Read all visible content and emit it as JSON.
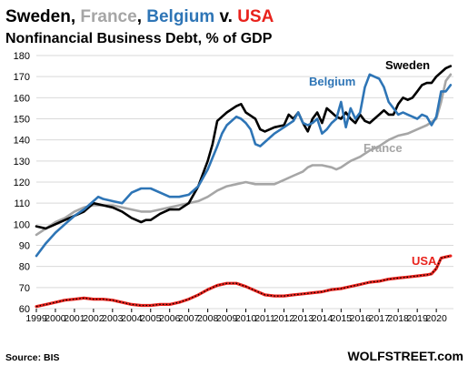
{
  "title": {
    "part1": "Sweden",
    "sep1": ", ",
    "part2": "France",
    "sep2": ", ",
    "part3": "Belgium",
    "sep3": " v. ",
    "part4": "USA"
  },
  "subtitle": "Nonfinancial Business Debt, % of GDP",
  "source": "Source: BIS",
  "brand": "WOLFSTREET.com",
  "colors": {
    "sweden": "#000000",
    "france": "#a6a6a6",
    "belgium": "#2e75b6",
    "usa": "#e8221c",
    "grid": "#d9d9d9"
  },
  "chart_data": {
    "type": "line",
    "title": "Sweden, France, Belgium v. USA",
    "subtitle": "Nonfinancial Business Debt, % of GDP",
    "xlabel": "",
    "ylabel": "",
    "xlim": [
      1999,
      2020.9
    ],
    "ylim": [
      60,
      180
    ],
    "yticks": [
      60,
      70,
      80,
      90,
      100,
      110,
      120,
      130,
      140,
      150,
      160,
      170,
      180
    ],
    "xticks": [
      "1999",
      "2000",
      "2001",
      "2002",
      "2003",
      "2004",
      "2005",
      "2006",
      "2007",
      "2008",
      "2009",
      "2010",
      "2011",
      "2012",
      "2013",
      "2014",
      "2015",
      "2016",
      "2017",
      "2018",
      "2019",
      "2020"
    ],
    "grid": true,
    "legend": "inline labels",
    "series": [
      {
        "name": "Sweden",
        "points": [
          [
            1999.0,
            99
          ],
          [
            1999.5,
            98
          ],
          [
            2000.0,
            100
          ],
          [
            2000.5,
            102
          ],
          [
            2001.0,
            104
          ],
          [
            2001.5,
            106
          ],
          [
            2002.0,
            110
          ],
          [
            2002.5,
            109
          ],
          [
            2003.0,
            108
          ],
          [
            2003.5,
            106
          ],
          [
            2004.0,
            103
          ],
          [
            2004.25,
            102
          ],
          [
            2004.5,
            101
          ],
          [
            2004.75,
            102
          ],
          [
            2005.0,
            102
          ],
          [
            2005.5,
            105
          ],
          [
            2006.0,
            107
          ],
          [
            2006.5,
            107
          ],
          [
            2007.0,
            110
          ],
          [
            2007.5,
            118
          ],
          [
            2008.0,
            130
          ],
          [
            2008.25,
            138
          ],
          [
            2008.5,
            149
          ],
          [
            2008.75,
            151
          ],
          [
            2009.0,
            153
          ],
          [
            2009.5,
            156
          ],
          [
            2009.75,
            157
          ],
          [
            2010.0,
            153
          ],
          [
            2010.5,
            150
          ],
          [
            2010.75,
            145
          ],
          [
            2011.0,
            144
          ],
          [
            2011.5,
            146
          ],
          [
            2012.0,
            147
          ],
          [
            2012.25,
            152
          ],
          [
            2012.5,
            150
          ],
          [
            2012.75,
            153
          ],
          [
            2013.0,
            148
          ],
          [
            2013.25,
            144
          ],
          [
            2013.5,
            150
          ],
          [
            2013.75,
            153
          ],
          [
            2014.0,
            148
          ],
          [
            2014.25,
            155
          ],
          [
            2014.5,
            153
          ],
          [
            2014.75,
            151
          ],
          [
            2015.0,
            150
          ],
          [
            2015.25,
            153
          ],
          [
            2015.5,
            150
          ],
          [
            2015.75,
            148
          ],
          [
            2016.0,
            152
          ],
          [
            2016.25,
            149
          ],
          [
            2016.5,
            148
          ],
          [
            2016.75,
            150
          ],
          [
            2017.0,
            152
          ],
          [
            2017.25,
            154
          ],
          [
            2017.5,
            152
          ],
          [
            2017.75,
            152
          ],
          [
            2018.0,
            157
          ],
          [
            2018.25,
            160
          ],
          [
            2018.5,
            159
          ],
          [
            2018.75,
            160
          ],
          [
            2019.0,
            163
          ],
          [
            2019.25,
            166
          ],
          [
            2019.5,
            167
          ],
          [
            2019.75,
            167
          ],
          [
            2020.0,
            170
          ],
          [
            2020.25,
            172
          ],
          [
            2020.5,
            174
          ],
          [
            2020.75,
            175
          ]
        ]
      },
      {
        "name": "France",
        "points": [
          [
            1999.0,
            95
          ],
          [
            1999.5,
            98
          ],
          [
            2000.0,
            101
          ],
          [
            2000.5,
            103
          ],
          [
            2001.0,
            106
          ],
          [
            2001.5,
            108
          ],
          [
            2002.0,
            109
          ],
          [
            2002.5,
            109
          ],
          [
            2003.0,
            109
          ],
          [
            2003.5,
            108
          ],
          [
            2004.0,
            107
          ],
          [
            2004.5,
            106
          ],
          [
            2005.0,
            106
          ],
          [
            2005.5,
            107
          ],
          [
            2006.0,
            108
          ],
          [
            2006.5,
            109
          ],
          [
            2007.0,
            110
          ],
          [
            2007.5,
            111
          ],
          [
            2008.0,
            113
          ],
          [
            2008.5,
            116
          ],
          [
            2009.0,
            118
          ],
          [
            2009.5,
            119
          ],
          [
            2010.0,
            120
          ],
          [
            2010.5,
            119
          ],
          [
            2011.0,
            119
          ],
          [
            2011.5,
            119
          ],
          [
            2012.0,
            121
          ],
          [
            2012.5,
            123
          ],
          [
            2013.0,
            125
          ],
          [
            2013.25,
            127
          ],
          [
            2013.5,
            128
          ],
          [
            2014.0,
            128
          ],
          [
            2014.5,
            127
          ],
          [
            2014.75,
            126
          ],
          [
            2015.0,
            127
          ],
          [
            2015.5,
            130
          ],
          [
            2016.0,
            132
          ],
          [
            2016.5,
            135
          ],
          [
            2017.0,
            137
          ],
          [
            2017.5,
            140
          ],
          [
            2018.0,
            142
          ],
          [
            2018.5,
            143
          ],
          [
            2019.0,
            145
          ],
          [
            2019.5,
            147
          ],
          [
            2020.0,
            150
          ],
          [
            2020.25,
            158
          ],
          [
            2020.5,
            168
          ],
          [
            2020.75,
            171
          ]
        ]
      },
      {
        "name": "Belgium",
        "points": [
          [
            1999.0,
            85
          ],
          [
            1999.5,
            91
          ],
          [
            2000.0,
            96
          ],
          [
            2000.5,
            100
          ],
          [
            2001.0,
            104
          ],
          [
            2001.5,
            107
          ],
          [
            2002.0,
            111
          ],
          [
            2002.25,
            113
          ],
          [
            2002.5,
            112
          ],
          [
            2003.0,
            111
          ],
          [
            2003.5,
            110
          ],
          [
            2004.0,
            115
          ],
          [
            2004.5,
            117
          ],
          [
            2005.0,
            117
          ],
          [
            2005.5,
            115
          ],
          [
            2006.0,
            113
          ],
          [
            2006.5,
            113
          ],
          [
            2007.0,
            114
          ],
          [
            2007.5,
            118
          ],
          [
            2008.0,
            126
          ],
          [
            2008.5,
            137
          ],
          [
            2008.75,
            143
          ],
          [
            2009.0,
            147
          ],
          [
            2009.5,
            151
          ],
          [
            2009.75,
            150
          ],
          [
            2010.0,
            148
          ],
          [
            2010.25,
            145
          ],
          [
            2010.5,
            138
          ],
          [
            2010.75,
            137
          ],
          [
            2011.0,
            139
          ],
          [
            2011.5,
            143
          ],
          [
            2012.0,
            146
          ],
          [
            2012.5,
            149
          ],
          [
            2012.75,
            153
          ],
          [
            2013.0,
            148
          ],
          [
            2013.25,
            147
          ],
          [
            2013.5,
            148
          ],
          [
            2013.75,
            150
          ],
          [
            2014.0,
            143
          ],
          [
            2014.25,
            145
          ],
          [
            2014.5,
            148
          ],
          [
            2014.75,
            150
          ],
          [
            2015.0,
            158
          ],
          [
            2015.25,
            146
          ],
          [
            2015.5,
            155
          ],
          [
            2015.75,
            150
          ],
          [
            2016.0,
            153
          ],
          [
            2016.25,
            165
          ],
          [
            2016.5,
            171
          ],
          [
            2016.75,
            170
          ],
          [
            2017.0,
            169
          ],
          [
            2017.25,
            165
          ],
          [
            2017.5,
            158
          ],
          [
            2017.75,
            155
          ],
          [
            2018.0,
            152
          ],
          [
            2018.25,
            153
          ],
          [
            2018.5,
            152
          ],
          [
            2018.75,
            151
          ],
          [
            2019.0,
            150
          ],
          [
            2019.25,
            152
          ],
          [
            2019.5,
            151
          ],
          [
            2019.75,
            147
          ],
          [
            2020.0,
            151
          ],
          [
            2020.25,
            163
          ],
          [
            2020.5,
            163
          ],
          [
            2020.75,
            166
          ]
        ]
      },
      {
        "name": "USA",
        "points": [
          [
            1999.0,
            61
          ],
          [
            1999.5,
            62
          ],
          [
            2000.0,
            63
          ],
          [
            2000.5,
            64
          ],
          [
            2001.0,
            64.5
          ],
          [
            2001.5,
            65
          ],
          [
            2002.0,
            64.5
          ],
          [
            2002.5,
            64.5
          ],
          [
            2003.0,
            64
          ],
          [
            2003.5,
            63
          ],
          [
            2004.0,
            62
          ],
          [
            2004.5,
            61.5
          ],
          [
            2005.0,
            61.5
          ],
          [
            2005.5,
            62
          ],
          [
            2006.0,
            62
          ],
          [
            2006.5,
            63
          ],
          [
            2007.0,
            64.5
          ],
          [
            2007.5,
            66.5
          ],
          [
            2008.0,
            69
          ],
          [
            2008.5,
            71
          ],
          [
            2009.0,
            72
          ],
          [
            2009.5,
            72
          ],
          [
            2010.0,
            70.5
          ],
          [
            2010.5,
            68.5
          ],
          [
            2011.0,
            66.5
          ],
          [
            2011.5,
            66
          ],
          [
            2012.0,
            66
          ],
          [
            2012.5,
            66.5
          ],
          [
            2013.0,
            67
          ],
          [
            2013.5,
            67.5
          ],
          [
            2014.0,
            68
          ],
          [
            2014.5,
            69
          ],
          [
            2015.0,
            69.5
          ],
          [
            2015.5,
            70.5
          ],
          [
            2016.0,
            71.5
          ],
          [
            2016.5,
            72.5
          ],
          [
            2017.0,
            73
          ],
          [
            2017.5,
            74
          ],
          [
            2018.0,
            74.5
          ],
          [
            2018.5,
            75
          ],
          [
            2019.0,
            75.5
          ],
          [
            2019.5,
            76
          ],
          [
            2019.75,
            76.5
          ],
          [
            2020.0,
            79
          ],
          [
            2020.25,
            84
          ],
          [
            2020.5,
            84.5
          ],
          [
            2020.75,
            85
          ]
        ]
      }
    ]
  }
}
